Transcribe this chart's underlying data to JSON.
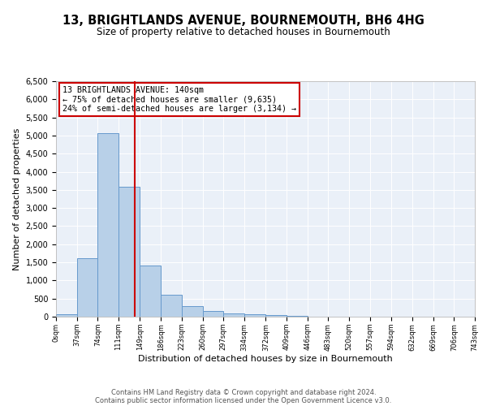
{
  "title": "13, BRIGHTLANDS AVENUE, BOURNEMOUTH, BH6 4HG",
  "subtitle": "Size of property relative to detached houses in Bournemouth",
  "xlabel": "Distribution of detached houses by size in Bournemouth",
  "ylabel": "Number of detached properties",
  "bin_edges": [
    0,
    37,
    74,
    111,
    149,
    186,
    223,
    260,
    297,
    334,
    372,
    409,
    446,
    483,
    520,
    557,
    594,
    632,
    669,
    706,
    743
  ],
  "bin_heights": [
    60,
    1620,
    5060,
    3580,
    1420,
    610,
    300,
    155,
    100,
    70,
    50,
    30,
    10,
    5,
    3,
    2,
    2,
    1,
    1,
    1
  ],
  "bar_color": "#b8d0e8",
  "bar_edge_color": "#6699cc",
  "property_line_x": 140,
  "property_line_color": "#cc0000",
  "annotation_line1": "13 BRIGHTLANDS AVENUE: 140sqm",
  "annotation_line2": "← 75% of detached houses are smaller (9,635)",
  "annotation_line3": "24% of semi-detached houses are larger (3,134) →",
  "annotation_box_edge_color": "#cc0000",
  "ylim": [
    0,
    6500
  ],
  "yticks": [
    0,
    500,
    1000,
    1500,
    2000,
    2500,
    3000,
    3500,
    4000,
    4500,
    5000,
    5500,
    6000,
    6500
  ],
  "background_color": "#eaf0f8",
  "footer_line1": "Contains HM Land Registry data © Crown copyright and database right 2024.",
  "footer_line2": "Contains public sector information licensed under the Open Government Licence v3.0."
}
